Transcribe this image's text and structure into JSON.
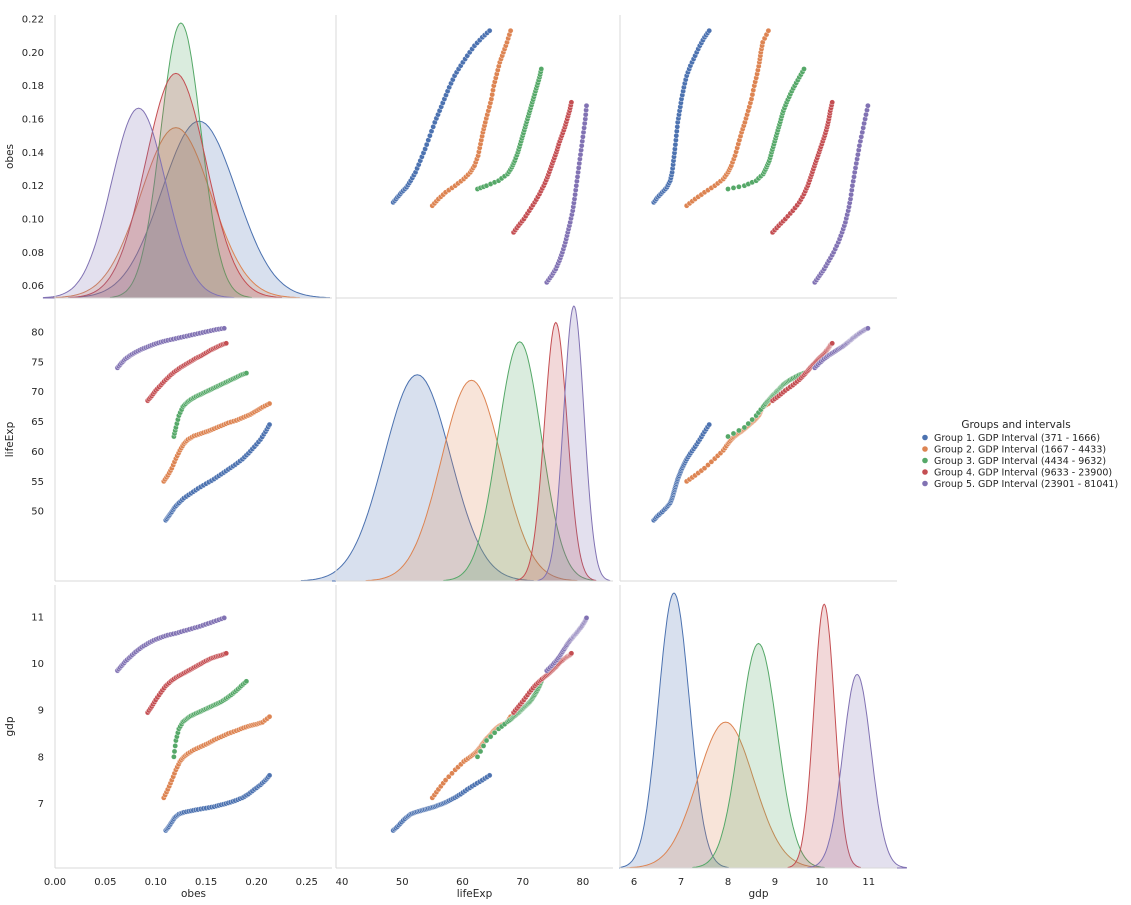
{
  "chart_data": {
    "type": "scatter",
    "variables": [
      "obes",
      "lifeExp",
      "gdp"
    ],
    "axis_labels": {
      "obes": "obes",
      "lifeExp": "lifeExp",
      "gdp": "gdp"
    },
    "ranges": {
      "obes": [
        0.0,
        0.275
      ],
      "lifeExp": [
        39,
        85
      ],
      "gdp": [
        5.7,
        11.6
      ]
    },
    "kde_y_ranges": {
      "obes": [
        0.055,
        0.22
      ]
    },
    "ticks": {
      "obes": {
        "values": [
          0.0,
          0.05,
          0.1,
          0.15,
          0.2,
          0.25
        ],
        "labels": [
          "0.00",
          "0.05",
          "0.10",
          "0.15",
          "0.20",
          "0.25"
        ]
      },
      "obes_y": {
        "values": [
          0.06,
          0.08,
          0.1,
          0.12,
          0.14,
          0.16,
          0.18,
          0.2,
          0.22
        ],
        "labels": [
          "0.06",
          "0.08",
          "0.10",
          "0.12",
          "0.14",
          "0.16",
          "0.18",
          "0.20",
          "0.22"
        ]
      },
      "lifeExp": {
        "values": [
          40,
          50,
          60,
          70,
          80
        ],
        "labels": [
          "40",
          "50",
          "60",
          "70",
          "80"
        ]
      },
      "lifeExp_y": {
        "values": [
          50,
          55,
          60,
          65,
          70,
          75,
          80
        ],
        "labels": [
          "50",
          "55",
          "60",
          "65",
          "70",
          "75",
          "80"
        ]
      },
      "gdp": {
        "values": [
          6,
          7,
          8,
          9,
          10,
          11
        ],
        "labels": [
          "6",
          "7",
          "8",
          "9",
          "10",
          "11"
        ]
      },
      "gdp_y": {
        "values": [
          7,
          8,
          9,
          10,
          11
        ],
        "labels": [
          "7",
          "8",
          "9",
          "10",
          "11"
        ]
      }
    },
    "legend": {
      "title": "Groups and intervals",
      "placement": "right"
    },
    "series": [
      {
        "name": "Group 1. GDP Interval (371 - 1666)",
        "color": "#4c72b0",
        "points": {
          "obes": [
            0.11,
            0.113,
            0.116,
            0.119,
            0.123,
            0.128,
            0.135,
            0.142,
            0.15,
            0.158,
            0.165,
            0.172,
            0.179,
            0.186,
            0.192,
            0.198,
            0.204,
            0.209,
            0.213
          ],
          "lifeExp": [
            48.5,
            49.2,
            49.9,
            50.7,
            51.4,
            52.2,
            53.0,
            53.8,
            54.6,
            55.4,
            56.2,
            57.0,
            57.8,
            58.7,
            59.7,
            60.8,
            62.0,
            63.3,
            64.5
          ],
          "gdp": [
            6.42,
            6.5,
            6.6,
            6.7,
            6.77,
            6.81,
            6.84,
            6.87,
            6.9,
            6.93,
            6.97,
            7.01,
            7.06,
            7.12,
            7.2,
            7.3,
            7.4,
            7.5,
            7.6
          ]
        },
        "kde": {
          "obes": {
            "center": 0.143,
            "sigma": 0.037,
            "peak": 0.137
          },
          "lifeExp": {
            "center": 52.5,
            "sigma": 5.5,
            "peak": 0.75
          },
          "gdp": {
            "center": 6.85,
            "sigma": 0.33,
            "peak": 0.98
          }
        }
      },
      {
        "name": "Group 2. GDP Interval (1667 - 4433)",
        "color": "#dd8452",
        "points": {
          "obes": [
            0.108,
            0.112,
            0.116,
            0.12,
            0.124,
            0.128,
            0.132,
            0.138,
            0.145,
            0.152,
            0.158,
            0.165,
            0.172,
            0.18,
            0.187,
            0.194,
            0.2,
            0.206,
            0.213
          ],
          "lifeExp": [
            55.0,
            56.0,
            57.2,
            58.8,
            60.2,
            61.3,
            62.0,
            62.6,
            63.0,
            63.4,
            63.8,
            64.3,
            64.8,
            65.2,
            65.7,
            66.2,
            66.8,
            67.4,
            68.0
          ],
          "gdp": [
            7.12,
            7.3,
            7.5,
            7.72,
            7.9,
            8.0,
            8.07,
            8.15,
            8.22,
            8.29,
            8.36,
            8.43,
            8.5,
            8.56,
            8.62,
            8.67,
            8.7,
            8.74,
            8.86
          ]
        },
        "kde": {
          "obes": {
            "center": 0.12,
            "sigma": 0.035,
            "peak": 0.132
          },
          "lifeExp": {
            "center": 61.5,
            "sigma": 5.0,
            "peak": 0.73
          },
          "gdp": {
            "center": 7.95,
            "sigma": 0.6,
            "peak": 0.52
          }
        }
      },
      {
        "name": "Group 3. GDP Interval (4434 - 9632)",
        "color": "#55a868",
        "points": {
          "obes": [
            0.118,
            0.12,
            0.123,
            0.127,
            0.131,
            0.135,
            0.14,
            0.145,
            0.15,
            0.155,
            0.16,
            0.165,
            0.17,
            0.175,
            0.18,
            0.185,
            0.19
          ],
          "lifeExp": [
            62.5,
            64.0,
            66.0,
            67.5,
            68.2,
            68.7,
            69.2,
            69.6,
            70.0,
            70.4,
            70.8,
            71.2,
            71.6,
            72.0,
            72.4,
            72.8,
            73.1
          ],
          "gdp": [
            8.0,
            8.35,
            8.6,
            8.75,
            8.82,
            8.88,
            8.93,
            8.98,
            9.03,
            9.08,
            9.13,
            9.18,
            9.25,
            9.33,
            9.42,
            9.52,
            9.62
          ]
        },
        "kde": {
          "obes": {
            "center": 0.125,
            "sigma": 0.02,
            "peak": 0.213
          },
          "lifeExp": {
            "center": 69.5,
            "sigma": 3.6,
            "peak": 0.87
          },
          "gdp": {
            "center": 8.65,
            "sigma": 0.4,
            "peak": 0.8
          }
        }
      },
      {
        "name": "Group 4. GDP Interval (9633 - 23900)",
        "color": "#c44e52",
        "points": {
          "obes": [
            0.092,
            0.096,
            0.1,
            0.105,
            0.11,
            0.115,
            0.12,
            0.125,
            0.13,
            0.135,
            0.14,
            0.145,
            0.15,
            0.155,
            0.16,
            0.165,
            0.17
          ],
          "lifeExp": [
            68.5,
            69.3,
            70.2,
            71.1,
            72.0,
            72.8,
            73.5,
            74.1,
            74.6,
            75.1,
            75.6,
            76.0,
            76.5,
            77.0,
            77.4,
            77.8,
            78.1
          ],
          "gdp": [
            8.95,
            9.08,
            9.22,
            9.38,
            9.52,
            9.62,
            9.7,
            9.76,
            9.82,
            9.88,
            9.94,
            10.0,
            10.06,
            10.11,
            10.15,
            10.18,
            10.22
          ]
        },
        "kde": {
          "obes": {
            "center": 0.12,
            "sigma": 0.03,
            "peak": 0.174
          },
          "lifeExp": {
            "center": 75.5,
            "sigma": 1.9,
            "peak": 0.94
          },
          "gdp": {
            "center": 10.05,
            "sigma": 0.22,
            "peak": 0.94
          }
        }
      },
      {
        "name": "Group 5. GDP Interval (23901 - 81041)",
        "color": "#8172b3",
        "points": {
          "obes": [
            0.062,
            0.066,
            0.07,
            0.075,
            0.08,
            0.086,
            0.092,
            0.098,
            0.105,
            0.112,
            0.12,
            0.128,
            0.136,
            0.144,
            0.152,
            0.16,
            0.168
          ],
          "lifeExp": [
            74.0,
            74.8,
            75.5,
            76.1,
            76.6,
            77.1,
            77.5,
            77.9,
            78.3,
            78.6,
            78.9,
            79.2,
            79.5,
            79.8,
            80.1,
            80.4,
            80.6
          ],
          "gdp": [
            9.85,
            9.95,
            10.05,
            10.15,
            10.25,
            10.35,
            10.43,
            10.5,
            10.56,
            10.61,
            10.65,
            10.7,
            10.75,
            10.8,
            10.86,
            10.92,
            10.98
          ]
        },
        "kde": {
          "obes": {
            "center": 0.083,
            "sigma": 0.027,
            "peak": 0.147
          },
          "lifeExp": {
            "center": 78.5,
            "sigma": 1.7,
            "peak": 1.0
          },
          "gdp": {
            "center": 10.75,
            "sigma": 0.3,
            "peak": 0.69
          }
        }
      }
    ]
  }
}
